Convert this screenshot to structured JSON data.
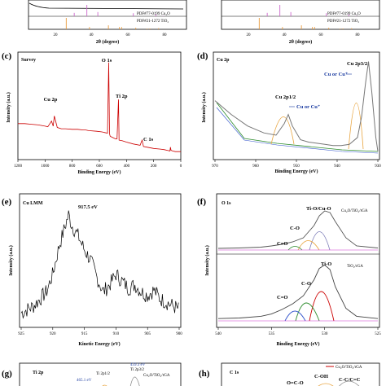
{
  "panels": {
    "a": {
      "xlabel": "2θ (degree)",
      "ref_labels": [
        "PDF#77-0199 Cu₂O",
        "PDF#21-1272 TiO₂"
      ],
      "xticks": [
        "20",
        "40",
        "60",
        "80"
      ],
      "colors": {
        "cu2o_ref": "#cc66cc",
        "tio2_ref": "#e89a3c"
      }
    },
    "b": {
      "xlabel": "2θ (degree)",
      "ref_labels": [
        "PDF#77-0199 Cu₂O",
        "PDF#21-1272 TiO₂"
      ],
      "xticks": [
        "20",
        "40",
        "60",
        "80"
      ]
    },
    "c": {
      "label": "(c)",
      "title": "Survey",
      "xlabel": "Binding Energy (eV)",
      "ylabel": "Intensity (a.u.)",
      "xticks": [
        "1200",
        "1000",
        "800",
        "600",
        "400",
        "200",
        "0"
      ],
      "peaks": [
        "O 1s",
        "Cu 2p",
        "Ti 2p",
        "C 1s"
      ],
      "color": "#cc0000"
    },
    "d": {
      "label": "(d)",
      "title": "Cu 2p",
      "xlabel": "Binding Energy (eV)",
      "ylabel": "Intensity (a.u.)",
      "xticks": [
        "970",
        "960",
        "950",
        "940",
        "930"
      ],
      "peak_labels": [
        "Cu 2p1/2",
        "Cu 2p3/2"
      ],
      "annotations": [
        "Cu or Cu⁺",
        "Cu or Cu⁺"
      ],
      "colors": {
        "fit": "#777777",
        "sat": "#e8a33c",
        "bg": "#2a8a2a",
        "baseline": "#3355cc"
      }
    },
    "e": {
      "label": "(e)",
      "title": "Cu LMM",
      "xlabel": "Kinetic Energy (eV)",
      "ylabel": "Intensity (a.u.)",
      "xticks": [
        "925",
        "920",
        "915",
        "910",
        "905",
        "900"
      ],
      "peak_annotation": "917.5 eV"
    },
    "f": {
      "label": "(f)",
      "title": "O 1s",
      "xlabel": "Binding Energy (eV)",
      "ylabel": "Intensity (a.u.)",
      "xticks": [
        "540",
        "535",
        "530",
        "525"
      ],
      "top_sample": "Cu₂O/TiO₂/rGA",
      "bottom_sample": "TiO₂/rGA",
      "top_components": [
        "Ti-O/Cu-O",
        "C-O",
        "C=O"
      ],
      "bottom_components": [
        "Ti-O",
        "C-O",
        "C=O"
      ]
    },
    "g": {
      "label": "(g)",
      "title": "Ti 2p",
      "sample": "Cu₂O/TiO₂/rGA",
      "annotations": [
        "459.3 eV",
        "465.1 eV",
        "Ti 2p1/2",
        "Ti 2p3/2"
      ]
    },
    "h": {
      "label": "(h)",
      "title": "C 1s",
      "legend": "Cu₂O/TiO₂/rGA",
      "components": [
        "C-OH",
        "C-C/C=C",
        "O=C-O"
      ]
    }
  },
  "chart_data": [
    {
      "panel": "a",
      "type": "line",
      "xlabel": "2θ (degree)",
      "xlim": [
        5,
        90
      ],
      "series": [
        {
          "name": "PDF#77-0199 Cu₂O",
          "x": [
            29.6,
            36.4,
            42.3,
            61.4,
            73.5,
            77.4
          ],
          "values": [
            30,
            100,
            37,
            27,
            17,
            4
          ]
        },
        {
          "name": "PDF#21-1272 TiO₂",
          "x": [
            25.3,
            37.8,
            48.0,
            53.9,
            55.1,
            62.7,
            68.8,
            70.3,
            75.0
          ],
          "values": [
            100,
            20,
            35,
            20,
            20,
            14,
            6,
            7,
            10
          ]
        }
      ]
    },
    {
      "panel": "c",
      "type": "line",
      "title": "Survey",
      "xlabel": "Binding Energy (eV)",
      "ylabel": "Intensity (a.u.)",
      "xlim": [
        1200,
        0
      ],
      "x": [
        1200,
        1150,
        1100,
        1050,
        1000,
        980,
        952,
        940,
        932,
        910,
        880,
        850,
        800,
        760,
        720,
        700,
        680,
        620,
        580,
        560,
        540,
        531,
        525,
        520,
        500,
        480,
        470,
        459,
        455,
        430,
        400,
        350,
        300,
        285,
        275,
        250,
        200,
        150,
        120,
        100,
        80,
        76,
        72,
        60,
        40,
        20,
        0
      ],
      "values": [
        84,
        84,
        83,
        82,
        80,
        79,
        88,
        80,
        96,
        78,
        76,
        76,
        75,
        75,
        74,
        74,
        73,
        72,
        71,
        70,
        69,
        180,
        68,
        64,
        62,
        60,
        60,
        122,
        58,
        57,
        55,
        52,
        50,
        58,
        48,
        47,
        45,
        44,
        43,
        42,
        41,
        47,
        42,
        41,
        40,
        40,
        40
      ]
    },
    {
      "panel": "d",
      "type": "line",
      "title": "Cu 2p",
      "xlabel": "Binding Energy (eV)",
      "ylabel": "Intensity (a.u.)",
      "xlim": [
        970,
        930
      ],
      "x": [
        970,
        966,
        962,
        958,
        955,
        953,
        952,
        951,
        949,
        947,
        945,
        943,
        941,
        939,
        937,
        935,
        934,
        933,
        932.3,
        931.5,
        930.5,
        930
      ],
      "series": [
        {
          "name": "Cu 2p data",
          "values": [
            72,
            60,
            50,
            44,
            42,
            52,
            60,
            50,
            38,
            36,
            35,
            34,
            33,
            33,
            34,
            40,
            58,
            88,
            106,
            80,
            40,
            28
          ]
        }
      ]
    },
    {
      "panel": "e",
      "type": "line",
      "title": "Cu LMM",
      "xlabel": "Kinetic Energy (eV)",
      "ylabel": "Intensity (a.u.)",
      "xlim": [
        925,
        900
      ],
      "x": [
        925,
        923,
        921,
        920,
        919,
        918,
        917.5,
        917,
        916,
        915,
        914,
        913,
        912,
        911,
        910,
        909,
        908,
        907,
        906,
        905,
        904,
        903,
        902,
        901,
        900
      ],
      "values": [
        40,
        44,
        52,
        62,
        78,
        90,
        96,
        90,
        84,
        76,
        70,
        60,
        52,
        56,
        62,
        58,
        54,
        56,
        52,
        50,
        53,
        48,
        46,
        44,
        42
      ]
    },
    {
      "panel": "f",
      "type": "line",
      "title": "O 1s",
      "xlabel": "Binding Energy (eV)",
      "ylabel": "Intensity (a.u.)",
      "xlim": [
        540,
        525
      ],
      "x": [
        540,
        538,
        536,
        535,
        534,
        533,
        532,
        531,
        530.5,
        530,
        529.5,
        529,
        528,
        527,
        525
      ],
      "series": [
        {
          "name": "Cu₂O/TiO₂/rGA",
          "values": [
            4,
            5,
            7,
            10,
            14,
            20,
            30,
            60,
            84,
            96,
            92,
            70,
            30,
            10,
            5
          ]
        },
        {
          "name": "TiO₂/rGA",
          "values": [
            4,
            5,
            8,
            12,
            20,
            30,
            44,
            72,
            92,
            98,
            90,
            60,
            22,
            8,
            4
          ]
        }
      ]
    }
  ]
}
